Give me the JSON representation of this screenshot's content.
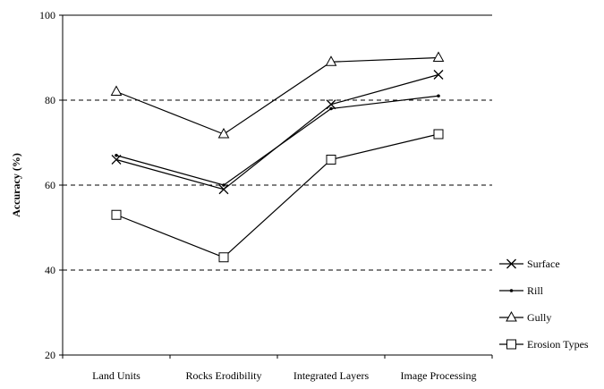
{
  "chart_data": {
    "type": "line",
    "title": "",
    "xlabel": "",
    "ylabel": "Accuracy (%)",
    "categories": [
      "Land Units",
      "Rocks Erodibility",
      "Integrated Layers",
      "Image Processing"
    ],
    "ylim": [
      20,
      100
    ],
    "yticks": [
      "20",
      "40",
      "60",
      "80",
      "100"
    ],
    "gridlines": [
      40,
      60,
      80
    ],
    "grid": "horizontal dashed",
    "legend_position": "right",
    "series": [
      {
        "name": "Surface",
        "marker": "x",
        "values": [
          66,
          59,
          79,
          86
        ]
      },
      {
        "name": "Rill",
        "marker": "dot",
        "values": [
          67,
          60,
          78,
          81
        ]
      },
      {
        "name": "Gully",
        "marker": "triangle",
        "values": [
          82,
          72,
          89,
          90
        ]
      },
      {
        "name": "Erosion Types",
        "marker": "square",
        "values": [
          53,
          43,
          66,
          72
        ]
      }
    ],
    "colors": {
      "line": "#000000",
      "grid": "#000000",
      "background": "#ffffff"
    }
  }
}
